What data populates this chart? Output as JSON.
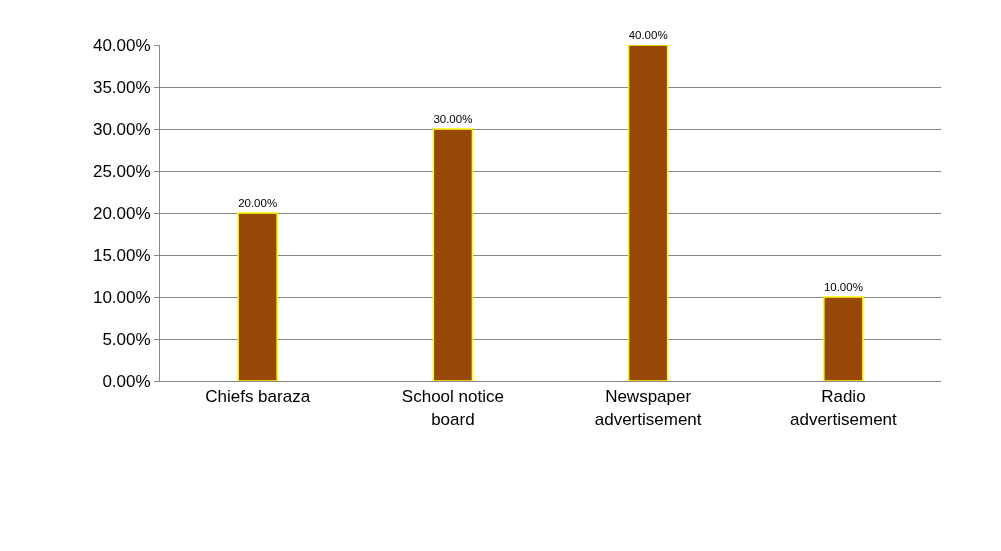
{
  "chart_data": {
    "type": "bar",
    "categories": [
      "Chiefs baraza",
      "School notice board",
      "Newspaper advertisement",
      "Radio advertisement"
    ],
    "values": [
      20,
      30,
      40,
      10
    ],
    "value_labels": [
      "20.00%",
      "30.00%",
      "40.00%",
      "10.00%"
    ],
    "color": "#974706",
    "ylim": [
      0,
      40
    ],
    "yticks": [
      {
        "value": 0,
        "label": "0.00%"
      },
      {
        "value": 5,
        "label": "5.00%"
      },
      {
        "value": 10,
        "label": "10.00%"
      },
      {
        "value": 15,
        "label": "15.00%"
      },
      {
        "value": 20,
        "label": "20.00%"
      },
      {
        "value": 25,
        "label": "25.00%"
      },
      {
        "value": 30,
        "label": "30.00%"
      },
      {
        "value": 35,
        "label": "35.00%"
      },
      {
        "value": 40,
        "label": "40.00%"
      }
    ],
    "grid": "y"
  }
}
